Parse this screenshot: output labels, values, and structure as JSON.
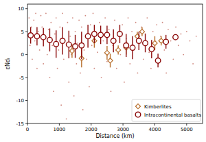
{
  "chart_data": {
    "type": "scatter",
    "x_label": "Distance (km)",
    "y_label": "εNdᵢ",
    "xlim": [
      0,
      5500
    ],
    "ylim": [
      -15,
      11
    ],
    "xticks": [
      0,
      1000,
      2000,
      3000,
      4000,
      5000
    ],
    "yticks": [
      -15,
      -10,
      -5,
      0,
      5,
      10
    ],
    "legend": "lower right",
    "series": [
      {
        "color": "#d08a80",
        "marker": "dot",
        "x": [
          50,
          80,
          120,
          150,
          200,
          230,
          260,
          300,
          340,
          380,
          420,
          460,
          500,
          540,
          580,
          620,
          660,
          700,
          740,
          780,
          820,
          860,
          900,
          940,
          980,
          1020,
          1060,
          1100,
          1140,
          1180,
          1220,
          1260,
          1300,
          1340,
          1380,
          1420,
          1460,
          1500,
          1540,
          1580,
          1620,
          1660,
          1700,
          1740,
          1780,
          1820,
          1860,
          1900,
          1940,
          1980,
          2020,
          2060,
          2100,
          2140,
          2200,
          2260,
          2320,
          2380,
          2440,
          2500,
          2560,
          2620,
          2680,
          2740,
          2800,
          2860,
          2920,
          2980,
          3040,
          3100,
          3160,
          3220,
          3280,
          3340,
          3400,
          3460,
          3520,
          3580,
          3640,
          3700,
          3760,
          3820,
          3880,
          3940,
          4000,
          4060,
          4120,
          4180,
          4240,
          4300,
          4360,
          4420,
          4500,
          4580,
          4660,
          4740,
          4820,
          4900,
          5000,
          5100,
          5200,
          5300
        ],
        "values": [
          8,
          2,
          6,
          -1,
          7.5,
          3,
          9,
          -3,
          5,
          1,
          8.5,
          6,
          -2,
          3.5,
          9,
          0,
          5.5,
          -5,
          7,
          2,
          -8,
          4.5,
          8,
          -3,
          1,
          6,
          -11,
          9,
          -1,
          3,
          -14,
          7,
          -6,
          4,
          0,
          8,
          -9,
          5,
          -2,
          2.5,
          7.5,
          -4,
          6,
          -12,
          1,
          8.5,
          -1,
          4,
          -7,
          6.5,
          2,
          9,
          -3,
          5,
          0.5,
          7,
          -5,
          3,
          8,
          -1.5,
          5.5,
          -8,
          2,
          7.5,
          -3,
          4,
          0,
          6.5,
          -6,
          3.5,
          8,
          -2,
          5,
          1,
          7,
          -4,
          3,
          6,
          -1,
          4.5,
          8,
          0.5,
          -3,
          5,
          2,
          6.5,
          -2,
          4,
          7,
          1,
          -4,
          5.5,
          3,
          -1,
          6,
          2,
          4.5,
          0,
          5,
          3,
          -2,
          4
        ]
      },
      {
        "name": "Kimberlites",
        "color": "#b8702e",
        "marker": "diamond",
        "x": [
          1400,
          1700,
          2100,
          2500,
          2600,
          2850,
          3100,
          3450,
          3600,
          4000,
          4200
        ],
        "values": [
          0.8,
          -0.8,
          3.0,
          0.4,
          -1.3,
          1.0,
          1.5,
          4.0,
          5.0,
          2.5,
          3.0
        ],
        "errors": [
          1.5,
          2,
          1.5,
          1.5,
          1.5,
          1,
          1.5,
          1,
          1,
          1.5,
          1
        ]
      },
      {
        "name": "Intracontinental basalts",
        "color": "#8b0a0a",
        "marker": "circle",
        "x": [
          100,
          300,
          500,
          700,
          900,
          1100,
          1300,
          1500,
          1700,
          1900,
          2100,
          2300,
          2500,
          2700,
          2900,
          3100,
          3300,
          3500,
          3700,
          3900,
          4100,
          4350,
          4650
        ],
        "values": [
          4.2,
          4.0,
          3.8,
          3.2,
          2.3,
          3.0,
          2.2,
          1.8,
          2.0,
          4.0,
          4.5,
          4.3,
          4.3,
          3.0,
          4.5,
          2.0,
          1.5,
          3.0,
          2.5,
          1.2,
          -1.3,
          2.8,
          3.8
        ],
        "errors": [
          1.8,
          2,
          2,
          2.5,
          3,
          3,
          3,
          2.5,
          3,
          2.5,
          2,
          2,
          2,
          2.5,
          2,
          2.5,
          2.5,
          2,
          2,
          2,
          1.5,
          1.5,
          0.5
        ]
      }
    ]
  }
}
